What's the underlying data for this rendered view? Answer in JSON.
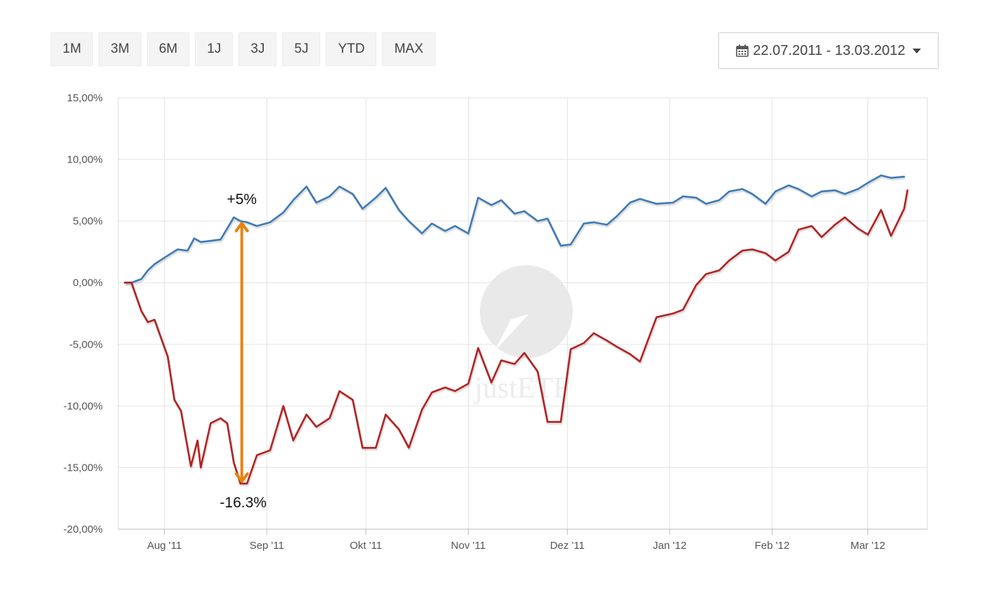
{
  "range_buttons": [
    "1M",
    "3M",
    "6M",
    "1J",
    "3J",
    "5J",
    "YTD",
    "MAX"
  ],
  "date_range": {
    "label": "22.07.2011 - 13.03.2012",
    "icon": "calendar-icon",
    "caret_icon": "caret-down-icon"
  },
  "watermark": "justETF",
  "colors": {
    "series_blue": "#3f7bb6",
    "series_red": "#b22222",
    "arrow": "#e8820c"
  },
  "chart_data": {
    "type": "line",
    "y_unit": "%",
    "ylim": [
      -20,
      15
    ],
    "y_ticks": [
      {
        "value": 15,
        "label": "15,00%"
      },
      {
        "value": 10,
        "label": "10,00%"
      },
      {
        "value": 5,
        "label": "5,00%"
      },
      {
        "value": 0,
        "label": "0,00%"
      },
      {
        "value": -5,
        "label": "-5,00%"
      },
      {
        "value": -10,
        "label": "-10,00%"
      },
      {
        "value": -15,
        "label": "-15,00%"
      },
      {
        "value": -20,
        "label": "-20,00%"
      }
    ],
    "xlim": [
      "2011-07-18",
      "2012-03-19"
    ],
    "x_ticks": [
      {
        "date": "2011-08-01",
        "label": "Aug '11"
      },
      {
        "date": "2011-09-01",
        "label": "Sep '11"
      },
      {
        "date": "2011-10-01",
        "label": "Okt '11"
      },
      {
        "date": "2011-11-01",
        "label": "Nov '11"
      },
      {
        "date": "2011-12-01",
        "label": "Dez '11"
      },
      {
        "date": "2012-01-01",
        "label": "Jan '12"
      },
      {
        "date": "2012-02-01",
        "label": "Feb '12"
      },
      {
        "date": "2012-03-01",
        "label": "Mar '12"
      }
    ],
    "grid": true,
    "series": [
      {
        "color": "#3f7bb6",
        "x": [
          "2011-07-20",
          "2011-07-22",
          "2011-07-25",
          "2011-07-27",
          "2011-07-29",
          "2011-08-02",
          "2011-08-05",
          "2011-08-08",
          "2011-08-10",
          "2011-08-12",
          "2011-08-15",
          "2011-08-18",
          "2011-08-22",
          "2011-08-24",
          "2011-08-26",
          "2011-08-29",
          "2011-09-02",
          "2011-09-06",
          "2011-09-09",
          "2011-09-13",
          "2011-09-16",
          "2011-09-20",
          "2011-09-23",
          "2011-09-27",
          "2011-09-30",
          "2011-10-04",
          "2011-10-07",
          "2011-10-11",
          "2011-10-14",
          "2011-10-18",
          "2011-10-21",
          "2011-10-25",
          "2011-10-28",
          "2011-11-01",
          "2011-11-04",
          "2011-11-08",
          "2011-11-11",
          "2011-11-15",
          "2011-11-18",
          "2011-11-22",
          "2011-11-25",
          "2011-11-29",
          "2011-12-02",
          "2011-12-06",
          "2011-12-09",
          "2011-12-13",
          "2011-12-16",
          "2011-12-20",
          "2011-12-23",
          "2011-12-28",
          "2012-01-02",
          "2012-01-05",
          "2012-01-09",
          "2012-01-12",
          "2012-01-16",
          "2012-01-19",
          "2012-01-23",
          "2012-01-26",
          "2012-01-30",
          "2012-02-02",
          "2012-02-06",
          "2012-02-09",
          "2012-02-13",
          "2012-02-16",
          "2012-02-20",
          "2012-02-23",
          "2012-02-27",
          "2012-03-01",
          "2012-03-05",
          "2012-03-08",
          "2012-03-12"
        ],
        "values": [
          0.0,
          0.0,
          0.3,
          1.0,
          1.5,
          2.2,
          2.7,
          2.6,
          3.6,
          3.3,
          3.4,
          3.5,
          5.3,
          5.0,
          4.9,
          4.6,
          4.9,
          5.7,
          6.7,
          7.8,
          6.5,
          7.0,
          7.8,
          7.2,
          6.0,
          6.9,
          7.7,
          5.9,
          5.0,
          4.0,
          4.8,
          4.2,
          4.6,
          4.0,
          6.9,
          6.3,
          6.7,
          5.6,
          5.8,
          5.0,
          5.2,
          3.0,
          3.1,
          4.8,
          4.9,
          4.7,
          5.4,
          6.5,
          6.8,
          6.4,
          6.5,
          7.0,
          6.9,
          6.4,
          6.7,
          7.4,
          7.6,
          7.2,
          6.4,
          7.4,
          7.9,
          7.6,
          7.0,
          7.4,
          7.5,
          7.2,
          7.6,
          8.1,
          8.7,
          8.5,
          8.6
        ]
      },
      {
        "color": "#b22222",
        "x": [
          "2011-07-20",
          "2011-07-22",
          "2011-07-25",
          "2011-07-27",
          "2011-07-29",
          "2011-08-02",
          "2011-08-04",
          "2011-08-06",
          "2011-08-09",
          "2011-08-11",
          "2011-08-12",
          "2011-08-15",
          "2011-08-18",
          "2011-08-20",
          "2011-08-22",
          "2011-08-24",
          "2011-08-26",
          "2011-08-29",
          "2011-09-02",
          "2011-09-06",
          "2011-09-09",
          "2011-09-13",
          "2011-09-16",
          "2011-09-20",
          "2011-09-23",
          "2011-09-27",
          "2011-09-30",
          "2011-10-04",
          "2011-10-07",
          "2011-10-11",
          "2011-10-14",
          "2011-10-18",
          "2011-10-21",
          "2011-10-25",
          "2011-10-28",
          "2011-11-01",
          "2011-11-04",
          "2011-11-08",
          "2011-11-11",
          "2011-11-15",
          "2011-11-18",
          "2011-11-22",
          "2011-11-25",
          "2011-11-29",
          "2011-12-02",
          "2011-12-06",
          "2011-12-09",
          "2011-12-13",
          "2011-12-16",
          "2011-12-20",
          "2011-12-23",
          "2011-12-28",
          "2012-01-02",
          "2012-01-05",
          "2012-01-09",
          "2012-01-12",
          "2012-01-16",
          "2012-01-19",
          "2012-01-23",
          "2012-01-26",
          "2012-01-30",
          "2012-02-02",
          "2012-02-06",
          "2012-02-09",
          "2012-02-13",
          "2012-02-16",
          "2012-02-20",
          "2012-02-23",
          "2012-02-27",
          "2012-03-01",
          "2012-03-05",
          "2012-03-08",
          "2012-03-12",
          "2012-03-13"
        ],
        "values": [
          0.0,
          0.0,
          -2.3,
          -3.2,
          -3.0,
          -6.0,
          -9.5,
          -10.4,
          -14.9,
          -12.8,
          -15.0,
          -11.4,
          -11.0,
          -11.4,
          -14.6,
          -16.3,
          -16.3,
          -14.0,
          -13.6,
          -10.0,
          -12.8,
          -10.7,
          -11.7,
          -11.0,
          -8.8,
          -9.5,
          -13.4,
          -13.4,
          -10.7,
          -11.9,
          -13.4,
          -10.3,
          -8.9,
          -8.5,
          -8.8,
          -8.2,
          -5.3,
          -8.1,
          -6.3,
          -6.6,
          -5.7,
          -7.2,
          -11.3,
          -11.3,
          -5.4,
          -4.9,
          -4.1,
          -4.7,
          -5.2,
          -5.8,
          -6.4,
          -2.8,
          -2.5,
          -2.2,
          -0.2,
          0.7,
          1.0,
          1.8,
          2.6,
          2.7,
          2.4,
          1.8,
          2.5,
          4.3,
          4.6,
          3.7,
          4.7,
          5.3,
          4.4,
          3.9,
          5.9,
          3.8,
          6.0,
          7.5
        ]
      }
    ],
    "annotations": [
      {
        "text": "+5%",
        "date": "2011-08-24",
        "value": 5.0
      },
      {
        "text": "-16.3%",
        "date": "2011-08-24",
        "value": -16.3
      }
    ]
  }
}
